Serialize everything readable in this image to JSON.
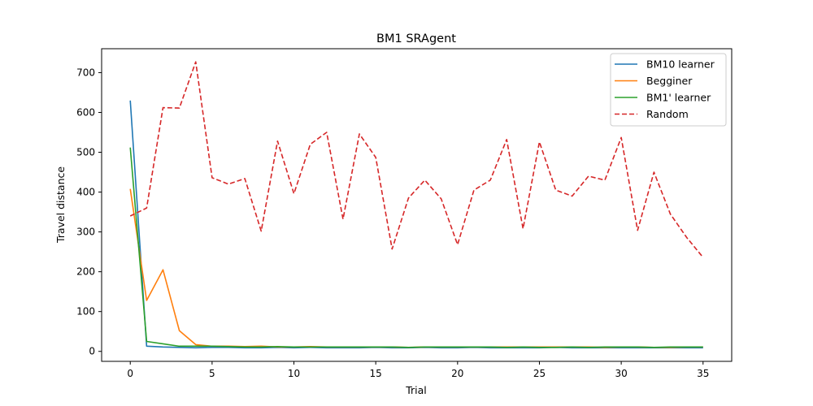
{
  "chart_data": {
    "type": "line",
    "title": "BM1  SRAgent",
    "xlabel": "Trial",
    "ylabel": "Travel distance",
    "xlim": [
      -1.75,
      36.75
    ],
    "ylim": [
      -25,
      760
    ],
    "xticks": [
      0,
      5,
      10,
      15,
      20,
      25,
      30,
      35
    ],
    "yticks": [
      0,
      100,
      200,
      300,
      400,
      500,
      600,
      700
    ],
    "grid": false,
    "legend_position": "upper right",
    "x": [
      0,
      1,
      2,
      3,
      4,
      5,
      6,
      7,
      8,
      9,
      10,
      11,
      12,
      13,
      14,
      15,
      16,
      17,
      18,
      19,
      20,
      21,
      22,
      23,
      24,
      25,
      26,
      27,
      28,
      29,
      30,
      31,
      32,
      33,
      34,
      35
    ],
    "series": [
      {
        "name": "BM10 learner",
        "color": "#1f77b4",
        "dash": "solid",
        "values": [
          630,
          13,
          11,
          10,
          9,
          10,
          10,
          9,
          9,
          10,
          9,
          10,
          9,
          9,
          9,
          10,
          9,
          9,
          10,
          9,
          9,
          10,
          9,
          9,
          9,
          9,
          10,
          9,
          9,
          9,
          9,
          9,
          9,
          9,
          9,
          9
        ]
      },
      {
        "name": "Begginer",
        "color": "#ff7f0e",
        "dash": "solid",
        "values": [
          408,
          128,
          205,
          52,
          17,
          13,
          13,
          12,
          13,
          11,
          11,
          12,
          11,
          11,
          11,
          11,
          11,
          10,
          11,
          11,
          11,
          11,
          11,
          11,
          11,
          11,
          11,
          11,
          11,
          10,
          11,
          11,
          10,
          10,
          11,
          11
        ]
      },
      {
        "name": "BM1' learner",
        "color": "#2ca02c",
        "dash": "solid",
        "values": [
          512,
          25,
          19,
          13,
          13,
          13,
          12,
          11,
          11,
          12,
          11,
          11,
          11,
          11,
          11,
          11,
          11,
          10,
          11,
          11,
          11,
          11,
          11,
          10,
          11,
          10,
          10,
          11,
          10,
          11,
          11,
          11,
          10,
          11,
          11,
          11
        ]
      },
      {
        "name": "Random",
        "color": "#d62728",
        "dash": "dashed",
        "values": [
          340,
          360,
          612,
          611,
          727,
          436,
          420,
          434,
          302,
          528,
          396,
          520,
          550,
          332,
          546,
          487,
          257,
          385,
          430,
          383,
          268,
          405,
          430,
          532,
          308,
          526,
          405,
          390,
          440,
          430,
          537,
          304,
          450,
          345,
          286,
          236
        ]
      }
    ]
  }
}
